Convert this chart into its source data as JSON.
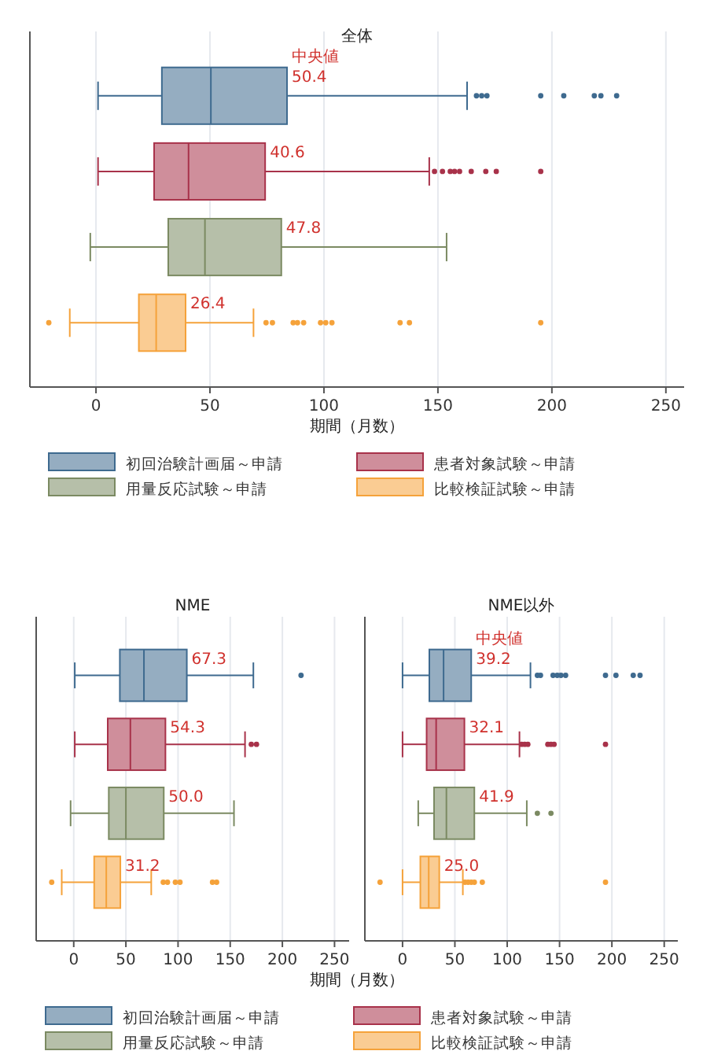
{
  "chart_data": [
    {
      "type": "box",
      "title": "全体",
      "orientation": "horizontal",
      "categories": [
        null
      ],
      "xlabel": "期間（月数）",
      "xlim": [
        -29,
        258
      ],
      "xticks": [
        0,
        50,
        100,
        150,
        200,
        250
      ],
      "grid": "x",
      "tick_labels": "x",
      "legend": "bottom",
      "annotations": [
        "中央値"
      ],
      "series": [
        {
          "name": "初回治験計画届～申請",
          "color": "#3e6a8f",
          "value_labels": [
            "50.4"
          ],
          "boxes": [
            {
              "low": 0.9,
              "q1": 28.9,
              "median": 50.4,
              "q3": 83.8,
              "high": 162.8,
              "outliers": [
                166.9,
                169.2,
                171.5,
                195.1,
                205.2,
                218.6,
                221.5,
                228.4
              ]
            }
          ]
        },
        {
          "name": "患者対象試験～申請",
          "color": "#a8324a",
          "value_labels": [
            "40.6"
          ],
          "boxes": [
            {
              "low": 0.9,
              "q1": 25.5,
              "median": 40.6,
              "q3": 74.2,
              "high": 146.2,
              "outliers": [
                148.5,
                152.0,
                155.4,
                157.3,
                159.5,
                164.6,
                171.0,
                175.6,
                195.1
              ]
            }
          ]
        },
        {
          "name": "用量反応試験～申請",
          "color": "#7b8a62",
          "value_labels": [
            "47.8"
          ],
          "boxes": [
            {
              "low": -2.5,
              "q1": 31.7,
              "median": 47.8,
              "q3": 81.3,
              "high": 153.8
            }
          ]
        },
        {
          "name": "比較検証試験～申請",
          "color": "#f5a23a",
          "value_labels": [
            "26.4"
          ],
          "boxes": [
            {
              "low": -11.5,
              "q1": 18.8,
              "median": 26.4,
              "q3": 39.3,
              "high": 69.1,
              "outliers": [
                -20.7,
                74.6,
                77.4,
                86.5,
                88.4,
                91.1,
                98.5,
                100.8,
                103.5,
                133.4,
                137.5,
                195.1
              ]
            }
          ]
        }
      ]
    },
    {
      "type": "box",
      "title": "NME",
      "orientation": "horizontal",
      "categories": [
        null
      ],
      "xlabel": "期間（月数）",
      "xlim": [
        -36,
        264
      ],
      "xticks": [
        0,
        50,
        100,
        150,
        200,
        250
      ],
      "grid": "x",
      "tick_labels": "x",
      "legend": "bottom",
      "series": [
        {
          "name": "初回治験計画届～申請",
          "color": "#3e6a8f",
          "value_labels": [
            "67.3"
          ],
          "boxes": [
            {
              "low": 1.0,
              "q1": 44.2,
              "median": 67.3,
              "q3": 108.4,
              "high": 172.2,
              "outliers": [
                217.9
              ]
            }
          ]
        },
        {
          "name": "患者対象試験～申請",
          "color": "#a8324a",
          "value_labels": [
            "54.3"
          ],
          "boxes": [
            {
              "low": 1.0,
              "q1": 32.6,
              "median": 54.3,
              "q3": 87.9,
              "high": 164.2,
              "outliers": [
                170.2,
                175.2
              ]
            }
          ]
        },
        {
          "name": "用量反応試験～申請",
          "color": "#7b8a62",
          "value_labels": [
            "50.0"
          ],
          "boxes": [
            {
              "low": -3.0,
              "q1": 33.6,
              "median": 50.0,
              "q3": 86.3,
              "high": 153.6
            }
          ]
        },
        {
          "name": "比較検証試験～申請",
          "color": "#f5a23a",
          "value_labels": [
            "31.2"
          ],
          "boxes": [
            {
              "low": -11.5,
              "q1": 19.6,
              "median": 31.2,
              "q3": 44.7,
              "high": 74.3,
              "outliers": [
                -21.1,
                85.8,
                89.9,
                97.4,
                101.9,
                133.0,
                137.0
              ]
            }
          ]
        }
      ]
    },
    {
      "type": "box",
      "title": "NME以外",
      "orientation": "horizontal",
      "categories": [
        null
      ],
      "xlim": [
        -36,
        263
      ],
      "xticks": [
        0,
        50,
        100,
        150,
        200,
        250
      ],
      "grid": "x",
      "tick_labels": "x",
      "annotations": [
        "中央値"
      ],
      "series": [
        {
          "color": "#3e6a8f",
          "value_labels": [
            "39.2"
          ],
          "boxes": [
            {
              "low": 0,
              "q1": 25.6,
              "median": 39.2,
              "q3": 65.6,
              "high": 122.2,
              "outliers": [
                128.8,
                131.8,
                143.8,
                147.8,
                151.3,
                155.8,
                193.9,
                203.9,
                220.4,
                226.9
              ]
            }
          ]
        },
        {
          "color": "#a8324a",
          "value_labels": [
            "32.1"
          ],
          "boxes": [
            {
              "low": 0,
              "q1": 23.0,
              "median": 32.1,
              "q3": 59.1,
              "high": 111.7,
              "outliers": [
                113.7,
                116.7,
                119.7,
                138.8,
                141.8,
                144.8,
                193.9
              ]
            }
          ]
        },
        {
          "color": "#7b8a62",
          "value_labels": [
            "41.9"
          ],
          "boxes": [
            {
              "low": 15.0,
              "q1": 30.1,
              "median": 41.9,
              "q3": 68.6,
              "high": 118.7,
              "outliers": [
                128.8,
                141.8
              ]
            }
          ]
        },
        {
          "color": "#f5a23a",
          "value_labels": [
            "25.0"
          ],
          "boxes": [
            {
              "low": 0,
              "q1": 17.0,
              "median": 25.0,
              "q3": 35.1,
              "high": 57.6,
              "outliers": [
                -21.5,
                59.6,
                62.6,
                65.6,
                68.6,
                76.2,
                193.9
              ]
            }
          ]
        }
      ]
    }
  ]
}
